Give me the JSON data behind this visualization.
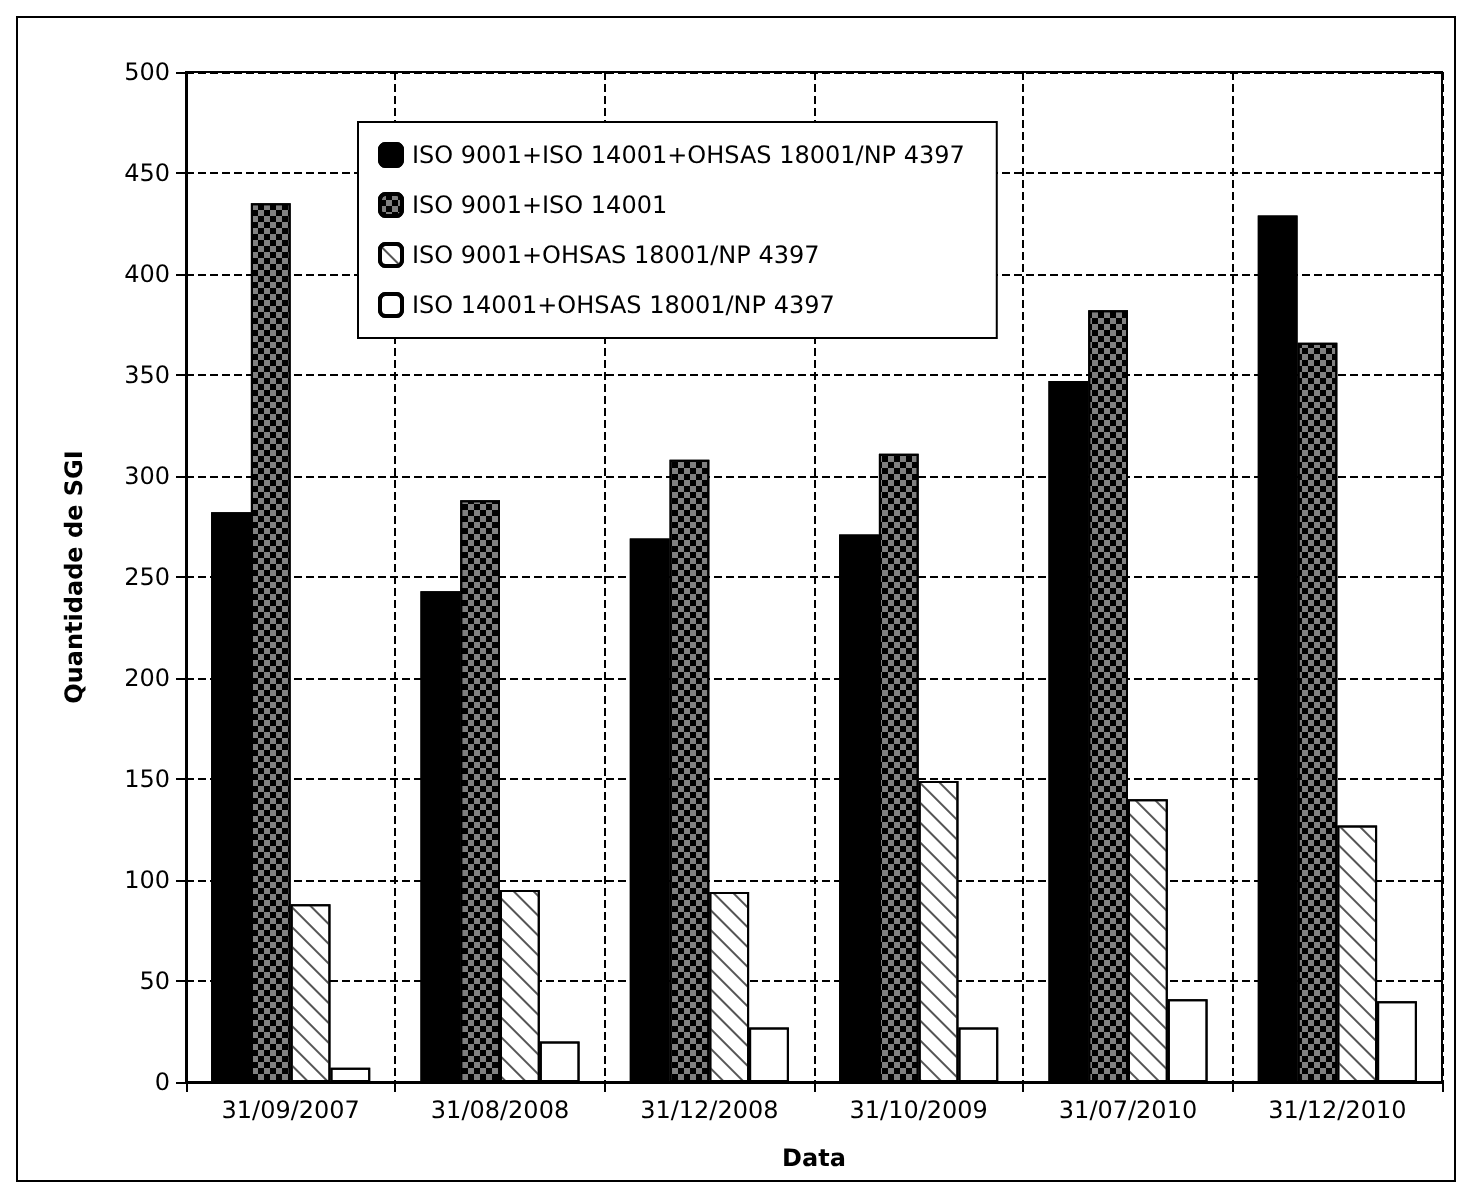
{
  "chart_data": {
    "type": "bar",
    "xlabel": "Data",
    "ylabel": "Quantidade de SGI",
    "categories": [
      "31/09/2007",
      "31/08/2008",
      "31/12/2008",
      "31/10/2009",
      "31/07/2010",
      "31/12/2010"
    ],
    "series": [
      {
        "name": "ISO 9001+ISO 14001+OHSAS 18001/NP 4397",
        "color": "#000000",
        "values": [
          282,
          243,
          269,
          271,
          347,
          429
        ]
      },
      {
        "name": "ISO 9001+ISO 14001",
        "color": "#808080",
        "values": [
          435,
          288,
          308,
          311,
          382,
          366
        ]
      },
      {
        "name": "ISO 9001+OHSAS 18001/NP 4397",
        "color": "#ffffff",
        "values": [
          88,
          95,
          94,
          149,
          140,
          127
        ]
      },
      {
        "name": "ISO 14001+OHSAS 18001/NP 4397",
        "color": "#ffffff",
        "values": [
          7,
          20,
          27,
          27,
          41,
          40
        ]
      }
    ],
    "ylim": [
      0,
      500
    ],
    "yticks": [
      0,
      50,
      100,
      150,
      200,
      250,
      300,
      350,
      400,
      450,
      500
    ],
    "grid": true,
    "legend": "top left"
  }
}
